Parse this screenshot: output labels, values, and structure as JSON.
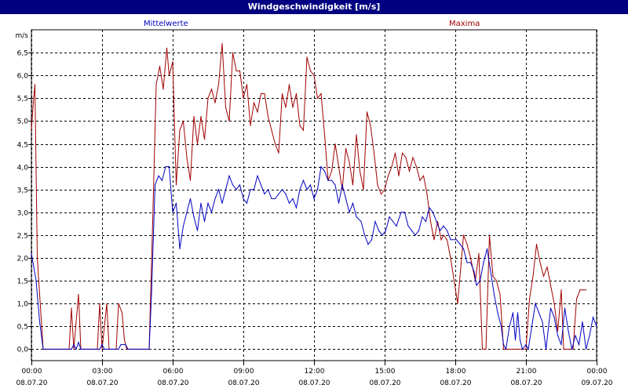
{
  "window": {
    "title": "Windgeschwindigkeit [m/s]"
  },
  "legend": {
    "mean_label": "Mittelwerte",
    "max_label": "Maxima"
  },
  "colors": {
    "mean": "#0000c0",
    "max": "#a00000",
    "titlebar": "#000080"
  },
  "chart_data": {
    "type": "line",
    "title": "Windgeschwindigkeit [m/s]",
    "ylabel": "m/s",
    "ylim": [
      -0.25,
      7.0
    ],
    "xlim": [
      0,
      24
    ],
    "grid": true,
    "legend_placement": "top",
    "yticks": [
      {
        "v": 0.0,
        "label": "0,0"
      },
      {
        "v": 0.5,
        "label": "0,5"
      },
      {
        "v": 1.0,
        "label": "1,0"
      },
      {
        "v": 1.5,
        "label": "1,5"
      },
      {
        "v": 2.0,
        "label": "2,0"
      },
      {
        "v": 2.5,
        "label": "2,5"
      },
      {
        "v": 3.0,
        "label": "3,0"
      },
      {
        "v": 3.5,
        "label": "3,5"
      },
      {
        "v": 4.0,
        "label": "4,0"
      },
      {
        "v": 4.5,
        "label": "4,5"
      },
      {
        "v": 5.0,
        "label": "5,0"
      },
      {
        "v": 5.5,
        "label": "5,5"
      },
      {
        "v": 6.0,
        "label": "6,0"
      },
      {
        "v": 6.5,
        "label": "6,5"
      }
    ],
    "xticks": [
      {
        "h": 0,
        "time": "00:00",
        "date": "08.07.20"
      },
      {
        "h": 3,
        "time": "03:00",
        "date": "08.07.20"
      },
      {
        "h": 6,
        "time": "06:00",
        "date": "08.07.20"
      },
      {
        "h": 9,
        "time": "09:00",
        "date": "08.07.20"
      },
      {
        "h": 12,
        "time": "12:00",
        "date": "08.07.20"
      },
      {
        "h": 15,
        "time": "15:00",
        "date": "08.07.20"
      },
      {
        "h": 18,
        "time": "18:00",
        "date": "08.07.20"
      },
      {
        "h": 21,
        "time": "21:00",
        "date": "08.07.20"
      },
      {
        "h": 24,
        "time": "00:00",
        "date": "09.07.20"
      }
    ],
    "series": [
      {
        "name": "Mittelwerte",
        "color": "#0000c0",
        "points": [
          [
            0.0,
            2.1
          ],
          [
            0.2,
            1.5
          ],
          [
            0.35,
            0.6
          ],
          [
            0.5,
            0.0
          ],
          [
            1.7,
            0.0
          ],
          [
            1.8,
            0.1
          ],
          [
            1.9,
            0.0
          ],
          [
            2.0,
            0.15
          ],
          [
            2.1,
            0.0
          ],
          [
            2.9,
            0.0
          ],
          [
            3.0,
            0.1
          ],
          [
            3.1,
            0.0
          ],
          [
            3.7,
            0.0
          ],
          [
            3.8,
            0.1
          ],
          [
            4.0,
            0.1
          ],
          [
            4.1,
            0.0
          ],
          [
            5.0,
            0.0
          ],
          [
            5.1,
            1.2
          ],
          [
            5.25,
            3.6
          ],
          [
            5.4,
            3.8
          ],
          [
            5.55,
            3.7
          ],
          [
            5.7,
            4.0
          ],
          [
            5.85,
            4.0
          ],
          [
            6.0,
            3.0
          ],
          [
            6.15,
            3.2
          ],
          [
            6.3,
            2.2
          ],
          [
            6.45,
            2.7
          ],
          [
            6.6,
            3.0
          ],
          [
            6.75,
            3.3
          ],
          [
            6.9,
            2.9
          ],
          [
            7.05,
            2.6
          ],
          [
            7.2,
            3.2
          ],
          [
            7.35,
            2.8
          ],
          [
            7.5,
            3.2
          ],
          [
            7.65,
            3.0
          ],
          [
            7.8,
            3.3
          ],
          [
            7.95,
            3.5
          ],
          [
            8.1,
            3.2
          ],
          [
            8.25,
            3.5
          ],
          [
            8.4,
            3.8
          ],
          [
            8.55,
            3.6
          ],
          [
            8.7,
            3.5
          ],
          [
            8.85,
            3.6
          ],
          [
            9.0,
            3.3
          ],
          [
            9.15,
            3.2
          ],
          [
            9.3,
            3.5
          ],
          [
            9.45,
            3.5
          ],
          [
            9.6,
            3.8
          ],
          [
            9.75,
            3.6
          ],
          [
            9.9,
            3.4
          ],
          [
            10.05,
            3.5
          ],
          [
            10.2,
            3.3
          ],
          [
            10.35,
            3.3
          ],
          [
            10.5,
            3.4
          ],
          [
            10.65,
            3.5
          ],
          [
            10.8,
            3.4
          ],
          [
            10.95,
            3.2
          ],
          [
            11.1,
            3.3
          ],
          [
            11.25,
            3.1
          ],
          [
            11.4,
            3.5
          ],
          [
            11.55,
            3.7
          ],
          [
            11.7,
            3.5
          ],
          [
            11.85,
            3.6
          ],
          [
            12.0,
            3.3
          ],
          [
            12.15,
            3.5
          ],
          [
            12.3,
            4.0
          ],
          [
            12.45,
            3.9
          ],
          [
            12.6,
            3.7
          ],
          [
            12.75,
            3.7
          ],
          [
            12.9,
            3.6
          ],
          [
            13.05,
            3.2
          ],
          [
            13.2,
            3.6
          ],
          [
            13.35,
            3.3
          ],
          [
            13.5,
            3.0
          ],
          [
            13.65,
            3.2
          ],
          [
            13.8,
            2.9
          ],
          [
            14.0,
            2.8
          ],
          [
            14.15,
            2.5
          ],
          [
            14.3,
            2.3
          ],
          [
            14.45,
            2.4
          ],
          [
            14.6,
            2.8
          ],
          [
            14.75,
            2.6
          ],
          [
            14.9,
            2.5
          ],
          [
            15.05,
            2.6
          ],
          [
            15.2,
            2.9
          ],
          [
            15.35,
            2.8
          ],
          [
            15.5,
            2.7
          ],
          [
            15.7,
            3.0
          ],
          [
            15.85,
            3.0
          ],
          [
            16.0,
            2.7
          ],
          [
            16.15,
            2.6
          ],
          [
            16.3,
            2.5
          ],
          [
            16.45,
            2.6
          ],
          [
            16.6,
            2.9
          ],
          [
            16.75,
            2.8
          ],
          [
            16.9,
            3.1
          ],
          [
            17.05,
            3.0
          ],
          [
            17.2,
            2.8
          ],
          [
            17.35,
            2.6
          ],
          [
            17.5,
            2.7
          ],
          [
            17.65,
            2.6
          ],
          [
            17.8,
            2.4
          ],
          [
            18.05,
            2.4
          ],
          [
            18.2,
            2.3
          ],
          [
            18.35,
            2.2
          ],
          [
            18.5,
            1.9
          ],
          [
            18.65,
            1.9
          ],
          [
            18.8,
            1.7
          ],
          [
            18.9,
            1.4
          ],
          [
            19.05,
            1.5
          ],
          [
            19.2,
            1.9
          ],
          [
            19.35,
            2.2
          ],
          [
            19.5,
            1.7
          ],
          [
            19.65,
            1.2
          ],
          [
            19.8,
            0.8
          ],
          [
            19.95,
            0.5
          ],
          [
            20.05,
            0.1
          ],
          [
            20.15,
            0.0
          ],
          [
            20.3,
            0.5
          ],
          [
            20.45,
            0.8
          ],
          [
            20.55,
            0.2
          ],
          [
            20.65,
            0.8
          ],
          [
            20.75,
            0.2
          ],
          [
            20.85,
            0.0
          ],
          [
            21.0,
            0.1
          ],
          [
            21.1,
            0.0
          ],
          [
            21.25,
            0.5
          ],
          [
            21.4,
            1.0
          ],
          [
            21.55,
            0.8
          ],
          [
            21.7,
            0.6
          ],
          [
            21.85,
            0.0
          ],
          [
            22.05,
            0.9
          ],
          [
            22.2,
            0.7
          ],
          [
            22.35,
            0.3
          ],
          [
            22.5,
            0.1
          ],
          [
            22.65,
            0.9
          ],
          [
            22.8,
            0.4
          ],
          [
            22.95,
            0.0
          ],
          [
            23.1,
            0.3
          ],
          [
            23.25,
            0.1
          ],
          [
            23.4,
            0.6
          ],
          [
            23.55,
            0.0
          ],
          [
            23.7,
            0.3
          ],
          [
            23.85,
            0.7
          ],
          [
            24.0,
            0.5
          ]
        ]
      },
      {
        "name": "Maxima",
        "color": "#a00000",
        "points": [
          [
            0.0,
            4.8
          ],
          [
            0.08,
            5.4
          ],
          [
            0.15,
            5.8
          ],
          [
            0.25,
            2.0
          ],
          [
            0.4,
            0.8
          ],
          [
            0.5,
            0.0
          ],
          [
            1.6,
            0.0
          ],
          [
            1.7,
            0.9
          ],
          [
            1.8,
            0.0
          ],
          [
            2.0,
            1.2
          ],
          [
            2.1,
            0.0
          ],
          [
            2.8,
            0.0
          ],
          [
            2.9,
            1.0
          ],
          [
            3.0,
            0.0
          ],
          [
            3.2,
            1.0
          ],
          [
            3.3,
            0.0
          ],
          [
            3.6,
            0.0
          ],
          [
            3.7,
            1.0
          ],
          [
            3.85,
            0.8
          ],
          [
            3.95,
            0.2
          ],
          [
            4.05,
            0.0
          ],
          [
            5.0,
            0.0
          ],
          [
            5.15,
            2.8
          ],
          [
            5.3,
            5.8
          ],
          [
            5.45,
            6.2
          ],
          [
            5.6,
            5.7
          ],
          [
            5.75,
            6.6
          ],
          [
            5.85,
            6.0
          ],
          [
            6.0,
            6.3
          ],
          [
            6.15,
            3.6
          ],
          [
            6.3,
            4.8
          ],
          [
            6.45,
            5.0
          ],
          [
            6.6,
            4.2
          ],
          [
            6.75,
            3.7
          ],
          [
            6.9,
            5.1
          ],
          [
            7.05,
            4.5
          ],
          [
            7.2,
            5.1
          ],
          [
            7.35,
            4.6
          ],
          [
            7.5,
            5.5
          ],
          [
            7.65,
            5.7
          ],
          [
            7.8,
            5.4
          ],
          [
            7.95,
            5.8
          ],
          [
            8.1,
            6.7
          ],
          [
            8.25,
            5.3
          ],
          [
            8.4,
            5.0
          ],
          [
            8.55,
            6.5
          ],
          [
            8.7,
            6.1
          ],
          [
            8.85,
            6.1
          ],
          [
            9.0,
            5.5
          ],
          [
            9.15,
            5.8
          ],
          [
            9.3,
            4.9
          ],
          [
            9.45,
            5.4
          ],
          [
            9.6,
            5.2
          ],
          [
            9.75,
            5.6
          ],
          [
            9.9,
            5.6
          ],
          [
            10.05,
            5.1
          ],
          [
            10.2,
            4.8
          ],
          [
            10.35,
            4.5
          ],
          [
            10.5,
            4.3
          ],
          [
            10.65,
            5.6
          ],
          [
            10.8,
            5.3
          ],
          [
            10.95,
            5.8
          ],
          [
            11.1,
            5.3
          ],
          [
            11.25,
            5.6
          ],
          [
            11.4,
            4.9
          ],
          [
            11.55,
            4.8
          ],
          [
            11.7,
            6.4
          ],
          [
            11.85,
            6.1
          ],
          [
            12.0,
            6.0
          ],
          [
            12.15,
            5.5
          ],
          [
            12.3,
            5.6
          ],
          [
            12.45,
            4.7
          ],
          [
            12.6,
            3.7
          ],
          [
            12.75,
            3.9
          ],
          [
            12.9,
            4.5
          ],
          [
            13.05,
            4.0
          ],
          [
            13.2,
            3.5
          ],
          [
            13.35,
            4.4
          ],
          [
            13.5,
            4.1
          ],
          [
            13.65,
            3.6
          ],
          [
            13.8,
            4.7
          ],
          [
            13.95,
            3.9
          ],
          [
            14.1,
            3.5
          ],
          [
            14.25,
            5.2
          ],
          [
            14.4,
            4.9
          ],
          [
            14.55,
            4.3
          ],
          [
            14.7,
            3.6
          ],
          [
            14.85,
            3.4
          ],
          [
            15.0,
            3.5
          ],
          [
            15.15,
            3.8
          ],
          [
            15.3,
            4.0
          ],
          [
            15.45,
            4.3
          ],
          [
            15.6,
            3.8
          ],
          [
            15.75,
            4.3
          ],
          [
            15.9,
            4.2
          ],
          [
            16.05,
            3.9
          ],
          [
            16.2,
            4.2
          ],
          [
            16.35,
            4.0
          ],
          [
            16.5,
            3.7
          ],
          [
            16.65,
            3.8
          ],
          [
            16.8,
            3.4
          ],
          [
            16.95,
            2.8
          ],
          [
            17.1,
            2.4
          ],
          [
            17.25,
            2.8
          ],
          [
            17.4,
            2.4
          ],
          [
            17.5,
            2.5
          ],
          [
            17.65,
            2.4
          ],
          [
            17.8,
            2.0
          ],
          [
            17.95,
            1.5
          ],
          [
            18.1,
            1.0
          ],
          [
            18.2,
            1.6
          ],
          [
            18.35,
            2.5
          ],
          [
            18.5,
            2.3
          ],
          [
            18.65,
            2.0
          ],
          [
            18.85,
            1.5
          ],
          [
            19.0,
            2.1
          ],
          [
            19.15,
            0.0
          ],
          [
            19.3,
            0.0
          ],
          [
            19.45,
            2.5
          ],
          [
            19.6,
            1.6
          ],
          [
            19.75,
            1.5
          ],
          [
            19.9,
            1.2
          ],
          [
            20.05,
            0.0
          ],
          [
            21.0,
            0.0
          ],
          [
            21.15,
            1.1
          ],
          [
            21.3,
            1.6
          ],
          [
            21.45,
            2.3
          ],
          [
            21.6,
            1.9
          ],
          [
            21.75,
            1.6
          ],
          [
            21.9,
            1.8
          ],
          [
            22.05,
            1.4
          ],
          [
            22.2,
            1.0
          ],
          [
            22.35,
            0.4
          ],
          [
            22.5,
            1.3
          ],
          [
            22.6,
            0.0
          ],
          [
            23.0,
            0.0
          ],
          [
            23.15,
            1.1
          ],
          [
            23.3,
            1.3
          ],
          [
            23.45,
            1.3
          ],
          [
            23.55,
            1.3
          ]
        ]
      }
    ]
  }
}
